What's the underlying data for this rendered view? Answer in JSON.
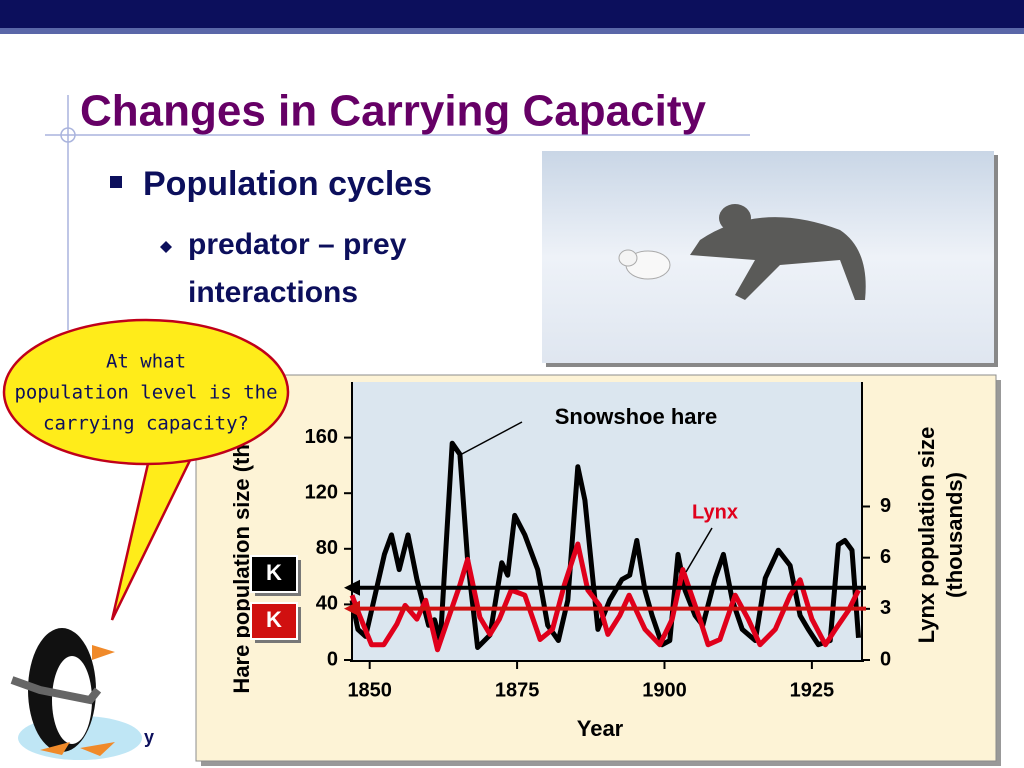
{
  "slide": {
    "title": "Changes in Carrying Capacity",
    "bullet": "Population cycles",
    "sub_bullet": "predator – prey interactions",
    "callout": [
      "At what",
      "population level is the",
      "carrying capacity?"
    ],
    "footer": "y"
  },
  "chart_data": {
    "type": "line",
    "x_label": "Year",
    "y_label": "Hare population size (thousands)",
    "y2_label": [
      "Lynx population size",
      "(thousands)"
    ],
    "xlim": [
      1847,
      1933.5
    ],
    "xticks": [
      1850,
      1875,
      1900,
      1925
    ],
    "ylim": [
      0,
      200
    ],
    "yticks": [
      0,
      40,
      80,
      120,
      160
    ],
    "y2lim": [
      0,
      16.3
    ],
    "y2ticks": [
      0,
      3,
      6,
      9
    ],
    "series": [
      {
        "name": "Snowshoe hare",
        "color": "#000000",
        "x": [
          1847,
          1848,
          1849.3,
          1852.5,
          1853.7,
          1855,
          1856.5,
          1858,
          1860,
          1861,
          1862,
          1864,
          1865.3,
          1866.6,
          1868.3,
          1870.4,
          1872.4,
          1873.4,
          1874.6,
          1876.3,
          1878.5,
          1880.2,
          1882,
          1883.6,
          1885.3,
          1886.5,
          1888.7,
          1890.7,
          1892.8,
          1894.1,
          1895.3,
          1896.7,
          1897.9,
          1899.6,
          1900.9,
          1902.3,
          1903.5,
          1905.2,
          1906.5,
          1908.6,
          1910,
          1911.5,
          1913.2,
          1915.4,
          1917.1,
          1919.3,
          1921.3,
          1923,
          1924.4,
          1926.1,
          1928.1,
          1929.5,
          1930.6,
          1931.8,
          1932.9
        ],
        "values": [
          43,
          22,
          17,
          76,
          90,
          65,
          90,
          58,
          25,
          29,
          14,
          156,
          148,
          72,
          9,
          18,
          70,
          61,
          104,
          90,
          65,
          25,
          14,
          43,
          139,
          115,
          22,
          43,
          58,
          61,
          86,
          50,
          32,
          11,
          14,
          76,
          50,
          32,
          25,
          59,
          76,
          43,
          22,
          14,
          59,
          79,
          68,
          32,
          22,
          11,
          14,
          83,
          86,
          79,
          16
        ]
      },
      {
        "name": "Lynx",
        "color": "#e0001b",
        "axis": "y2",
        "x": [
          1847,
          1848.3,
          1850.3,
          1852.4,
          1854.6,
          1856,
          1858,
          1859.5,
          1861.5,
          1863,
          1865.3,
          1866.6,
          1868.7,
          1870.4,
          1872,
          1874,
          1876.3,
          1878.9,
          1881,
          1883,
          1885.3,
          1887,
          1889,
          1890.4,
          1892.4,
          1894,
          1896.7,
          1899.2,
          1901.3,
          1903.1,
          1904.3,
          1906,
          1907.4,
          1909.4,
          1912,
          1914.2,
          1916.2,
          1918.8,
          1921.3,
          1923,
          1925,
          1927.3,
          1929,
          1931.2,
          1932.9
        ],
        "values": [
          3.8,
          2.6,
          0.9,
          0.9,
          2.1,
          3.2,
          2.4,
          3.5,
          0.6,
          2.1,
          4.4,
          5.9,
          2.5,
          1.5,
          2.4,
          4.1,
          3.8,
          1.2,
          1.8,
          4.4,
          6.8,
          4.1,
          3.2,
          1.5,
          2.6,
          3.8,
          1.8,
          0.9,
          2.4,
          5.3,
          4.1,
          2.4,
          0.9,
          1.2,
          3.8,
          2.4,
          0.9,
          1.8,
          3.8,
          4.7,
          2.4,
          0.9,
          1.8,
          2.9,
          4.1
        ]
      }
    ],
    "reference_lines": [
      {
        "label": "K",
        "value": 52,
        "color": "#000000"
      },
      {
        "label": "K",
        "value": 37,
        "color": "#d01010"
      }
    ]
  }
}
